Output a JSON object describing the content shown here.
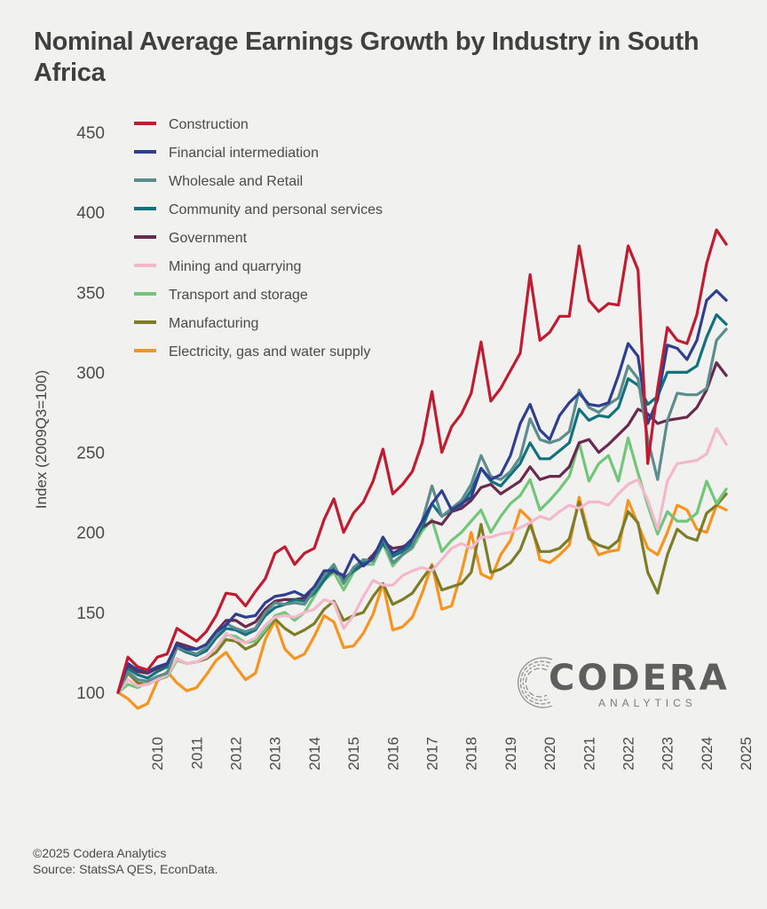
{
  "title": "Nominal Average Earnings Growth by Industry in South Africa",
  "footer": {
    "copyright": "©2025 Codera Analytics",
    "source": "Source: StatsSA QES, EconData."
  },
  "logo": {
    "name": "CODERA",
    "sub": "ANALYTICS"
  },
  "chart_data": {
    "type": "line",
    "title": "Nominal Average Earnings Growth by Industry in South Africa",
    "xlabel": "",
    "ylabel": "Index (2009Q3=100)",
    "ylim": [
      95,
      455
    ],
    "yticks": [
      100,
      150,
      200,
      250,
      300,
      350,
      400,
      450
    ],
    "xtick_labels": [
      "2010",
      "2011",
      "2012",
      "2013",
      "2014",
      "2015",
      "2016",
      "2017",
      "2018",
      "2019",
      "2020",
      "2021",
      "2022",
      "2023",
      "2024",
      "2025"
    ],
    "x_start": "2009Q3",
    "x_frequency": "quarterly",
    "grid": false,
    "legend_position": "top-left",
    "series": [
      {
        "name": "Construction",
        "color": "#c01b30",
        "values": [
          100,
          122,
          116,
          114,
          122,
          124,
          140,
          136,
          132,
          138,
          148,
          162,
          161,
          154,
          163,
          171,
          187,
          191,
          180,
          187,
          190,
          208,
          221,
          200,
          212,
          219,
          232,
          252,
          224,
          230,
          238,
          256,
          288,
          250,
          266,
          274,
          287,
          319,
          282,
          290,
          301,
          312,
          361,
          320,
          325,
          335,
          335,
          379,
          345,
          338,
          343,
          342,
          379,
          364,
          243,
          290,
          328,
          320,
          318,
          336,
          368,
          389,
          380
        ]
      },
      {
        "name": "Financial intermediation",
        "color": "#2f3f8f",
        "values": [
          100,
          118,
          114,
          113,
          116,
          118,
          130,
          127,
          127,
          130,
          138,
          142,
          149,
          147,
          148,
          156,
          160,
          161,
          163,
          160,
          166,
          176,
          176,
          173,
          186,
          179,
          184,
          197,
          187,
          190,
          196,
          207,
          218,
          226,
          214,
          218,
          222,
          240,
          233,
          236,
          248,
          268,
          280,
          264,
          258,
          273,
          281,
          287,
          280,
          279,
          281,
          298,
          318,
          310,
          268,
          283,
          317,
          315,
          308,
          320,
          345,
          351,
          345
        ]
      },
      {
        "name": "Wholesale and Retail",
        "color": "#5d8c8c",
        "values": [
          100,
          113,
          108,
          107,
          110,
          112,
          128,
          126,
          124,
          128,
          136,
          143,
          140,
          138,
          140,
          150,
          156,
          155,
          156,
          155,
          164,
          173,
          180,
          168,
          178,
          183,
          182,
          197,
          181,
          186,
          191,
          207,
          229,
          210,
          215,
          220,
          230,
          248,
          235,
          233,
          238,
          247,
          271,
          258,
          256,
          258,
          263,
          289,
          278,
          275,
          280,
          284,
          304,
          296,
          258,
          233,
          270,
          287,
          286,
          286,
          290,
          320,
          327
        ]
      },
      {
        "name": "Community and personal services",
        "color": "#11717f",
        "values": [
          100,
          115,
          111,
          109,
          113,
          116,
          128,
          125,
          123,
          126,
          134,
          140,
          139,
          136,
          139,
          148,
          153,
          155,
          158,
          157,
          162,
          170,
          178,
          170,
          176,
          181,
          183,
          193,
          185,
          188,
          193,
          203,
          218,
          210,
          214,
          217,
          226,
          240,
          232,
          229,
          236,
          243,
          256,
          246,
          246,
          251,
          256,
          277,
          270,
          273,
          272,
          278,
          296,
          292,
          280,
          285,
          300,
          300,
          300,
          304,
          322,
          336,
          330
        ]
      },
      {
        "name": "Government",
        "color": "#6a2a50",
        "values": [
          100,
          117,
          113,
          112,
          115,
          117,
          131,
          129,
          127,
          130,
          138,
          145,
          145,
          141,
          144,
          152,
          157,
          158,
          158,
          159,
          163,
          172,
          176,
          171,
          176,
          180,
          186,
          194,
          190,
          191,
          194,
          203,
          207,
          205,
          213,
          215,
          220,
          228,
          230,
          224,
          228,
          232,
          241,
          233,
          235,
          235,
          241,
          256,
          258,
          250,
          255,
          261,
          267,
          277,
          274,
          268,
          270,
          271,
          272,
          278,
          289,
          306,
          298
        ]
      },
      {
        "name": "Mining and quarrying",
        "color": "#f4b8cc",
        "values": [
          100,
          108,
          104,
          105,
          108,
          111,
          121,
          118,
          119,
          122,
          128,
          137,
          133,
          131,
          134,
          142,
          147,
          148,
          147,
          150,
          152,
          158,
          156,
          140,
          148,
          160,
          170,
          167,
          167,
          173,
          176,
          178,
          176,
          183,
          190,
          193,
          190,
          197,
          197,
          199,
          200,
          203,
          206,
          210,
          208,
          213,
          217,
          215,
          219,
          219,
          217,
          224,
          230,
          233,
          220,
          202,
          232,
          243,
          244,
          245,
          249,
          265,
          255
        ]
      },
      {
        "name": "Transport and storage",
        "color": "#71c67a",
        "values": [
          100,
          105,
          103,
          106,
          108,
          110,
          120,
          118,
          119,
          122,
          128,
          136,
          135,
          131,
          132,
          139,
          148,
          150,
          145,
          150,
          160,
          170,
          175,
          164,
          175,
          180,
          180,
          193,
          179,
          186,
          190,
          201,
          208,
          188,
          195,
          200,
          207,
          214,
          200,
          210,
          218,
          223,
          233,
          214,
          220,
          227,
          235,
          256,
          232,
          243,
          248,
          232,
          259,
          237,
          217,
          199,
          213,
          207,
          207,
          212,
          232,
          218,
          227
        ]
      },
      {
        "name": "Manufacturing",
        "color": "#7d7d28",
        "values": [
          100,
          112,
          106,
          105,
          108,
          110,
          121,
          118,
          119,
          121,
          125,
          133,
          132,
          127,
          130,
          138,
          146,
          140,
          136,
          139,
          143,
          152,
          157,
          145,
          148,
          150,
          160,
          168,
          155,
          158,
          162,
          171,
          179,
          164,
          166,
          168,
          175,
          205,
          175,
          177,
          181,
          189,
          205,
          188,
          188,
          190,
          196,
          219,
          196,
          192,
          190,
          195,
          213,
          206,
          175,
          162,
          186,
          202,
          197,
          195,
          212,
          217,
          224
        ]
      },
      {
        "name": "Electricity, gas and water supply",
        "color": "#f7941d",
        "values": [
          100,
          96,
          90,
          93,
          107,
          113,
          106,
          101,
          103,
          111,
          120,
          125,
          116,
          108,
          112,
          133,
          145,
          127,
          121,
          124,
          135,
          148,
          144,
          128,
          129,
          137,
          149,
          168,
          139,
          141,
          147,
          162,
          180,
          152,
          154,
          175,
          200,
          174,
          171,
          186,
          195,
          214,
          208,
          183,
          181,
          186,
          192,
          222,
          198,
          186,
          188,
          189,
          220,
          205,
          190,
          186,
          200,
          217,
          214,
          202,
          200,
          217,
          214
        ]
      }
    ]
  },
  "legend": [
    {
      "label": "Construction",
      "color": "#c01b30"
    },
    {
      "label": "Financial intermediation",
      "color": "#2f3f8f"
    },
    {
      "label": "Wholesale and Retail",
      "color": "#5d8c8c"
    },
    {
      "label": "Community and personal services",
      "color": "#11717f"
    },
    {
      "label": "Government",
      "color": "#6a2a50"
    },
    {
      "label": "Mining and quarrying",
      "color": "#f4b8cc"
    },
    {
      "label": "Transport and storage",
      "color": "#71c67a"
    },
    {
      "label": "Manufacturing",
      "color": "#7d7d28"
    },
    {
      "label": "Electricity, gas and water supply",
      "color": "#f7941d"
    }
  ]
}
